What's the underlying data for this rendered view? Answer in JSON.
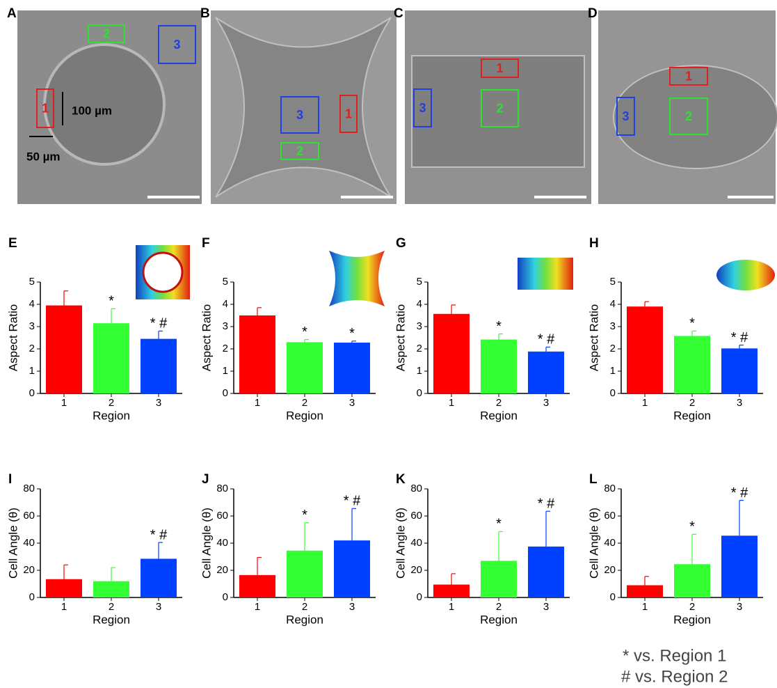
{
  "micrographs": [
    {
      "label": "A",
      "regions": [
        "1",
        "2",
        "3"
      ],
      "annotations": [
        "100 µm",
        "50 µm"
      ]
    },
    {
      "label": "B",
      "regions": [
        "1",
        "2",
        "3"
      ]
    },
    {
      "label": "C",
      "regions": [
        "1",
        "2",
        "3"
      ]
    },
    {
      "label": "D",
      "regions": [
        "1",
        "2",
        "3"
      ]
    }
  ],
  "chart_data": [
    {
      "type": "bar",
      "label": "E",
      "ylabel": "Aspect Ratio",
      "xlabel": "Region",
      "categories": [
        "1",
        "2",
        "3"
      ],
      "values": [
        3.95,
        3.15,
        2.45
      ],
      "errors": [
        0.65,
        0.65,
        0.35
      ],
      "annotations": [
        null,
        "*",
        "* #"
      ],
      "colors": [
        "#ff0000",
        "#33ff33",
        "#0040ff"
      ],
      "ylim": [
        0,
        5
      ],
      "yticks": [
        0,
        1,
        2,
        3,
        4,
        5
      ]
    },
    {
      "type": "bar",
      "label": "F",
      "ylabel": "Aspect Ratio",
      "xlabel": "Region",
      "categories": [
        "1",
        "2",
        "3"
      ],
      "values": [
        3.5,
        2.3,
        2.28
      ],
      "errors": [
        0.35,
        0.12,
        0.07
      ],
      "annotations": [
        null,
        "*",
        "*"
      ],
      "colors": [
        "#ff0000",
        "#33ff33",
        "#0040ff"
      ],
      "ylim": [
        0,
        5
      ],
      "yticks": [
        0,
        1,
        2,
        3,
        4,
        5
      ]
    },
    {
      "type": "bar",
      "label": "G",
      "ylabel": "Aspect Ratio",
      "xlabel": "Region",
      "categories": [
        "1",
        "2",
        "3"
      ],
      "values": [
        3.57,
        2.42,
        1.88
      ],
      "errors": [
        0.4,
        0.25,
        0.2
      ],
      "annotations": [
        null,
        "*",
        "* #"
      ],
      "colors": [
        "#ff0000",
        "#33ff33",
        "#0040ff"
      ],
      "ylim": [
        0,
        5
      ],
      "yticks": [
        0,
        1,
        2,
        3,
        4,
        5
      ]
    },
    {
      "type": "bar",
      "label": "H",
      "ylabel": "Aspect Ratio",
      "xlabel": "Region",
      "categories": [
        "1",
        "2",
        "3"
      ],
      "values": [
        3.9,
        2.58,
        2.02
      ],
      "errors": [
        0.22,
        0.22,
        0.15
      ],
      "annotations": [
        null,
        "*",
        "* #"
      ],
      "colors": [
        "#ff0000",
        "#33ff33",
        "#0040ff"
      ],
      "ylim": [
        0,
        5
      ],
      "yticks": [
        0,
        1,
        2,
        3,
        4,
        5
      ]
    },
    {
      "type": "bar",
      "label": "I",
      "ylabel": "Cell Angle (θ)",
      "xlabel": "Region",
      "categories": [
        "1",
        "2",
        "3"
      ],
      "values": [
        13.5,
        12,
        28.5
      ],
      "errors": [
        10.5,
        10,
        12
      ],
      "annotations": [
        null,
        null,
        "* #"
      ],
      "colors": [
        "#ff0000",
        "#33ff33",
        "#0040ff"
      ],
      "ylim": [
        0,
        80
      ],
      "yticks": [
        0,
        20,
        40,
        60,
        80
      ]
    },
    {
      "type": "bar",
      "label": "J",
      "ylabel": "Cell Angle (θ)",
      "xlabel": "Region",
      "categories": [
        "1",
        "2",
        "3"
      ],
      "values": [
        16.5,
        34.5,
        42
      ],
      "errors": [
        13,
        20.5,
        23.5
      ],
      "annotations": [
        null,
        "*",
        "* #"
      ],
      "colors": [
        "#ff0000",
        "#33ff33",
        "#0040ff"
      ],
      "ylim": [
        0,
        80
      ],
      "yticks": [
        0,
        20,
        40,
        60,
        80
      ]
    },
    {
      "type": "bar",
      "label": "K",
      "ylabel": "Cell Angle (θ)",
      "xlabel": "Region",
      "categories": [
        "1",
        "2",
        "3"
      ],
      "values": [
        9.5,
        27,
        37.5
      ],
      "errors": [
        8,
        21.5,
        26
      ],
      "annotations": [
        null,
        "*",
        "* #"
      ],
      "colors": [
        "#ff0000",
        "#33ff33",
        "#0040ff"
      ],
      "ylim": [
        0,
        80
      ],
      "yticks": [
        0,
        20,
        40,
        60,
        80
      ]
    },
    {
      "type": "bar",
      "label": "L",
      "ylabel": "Cell Angle (θ)",
      "xlabel": "Region",
      "categories": [
        "1",
        "2",
        "3"
      ],
      "values": [
        9,
        24.5,
        45.5
      ],
      "errors": [
        6.5,
        22,
        26
      ],
      "annotations": [
        null,
        "*",
        "* #"
      ],
      "colors": [
        "#ff0000",
        "#33ff33",
        "#0040ff"
      ],
      "ylim": [
        0,
        80
      ],
      "yticks": [
        0,
        20,
        40,
        60,
        80
      ]
    }
  ],
  "notes": [
    "* vs. Region 1",
    "# vs. Region 2"
  ]
}
